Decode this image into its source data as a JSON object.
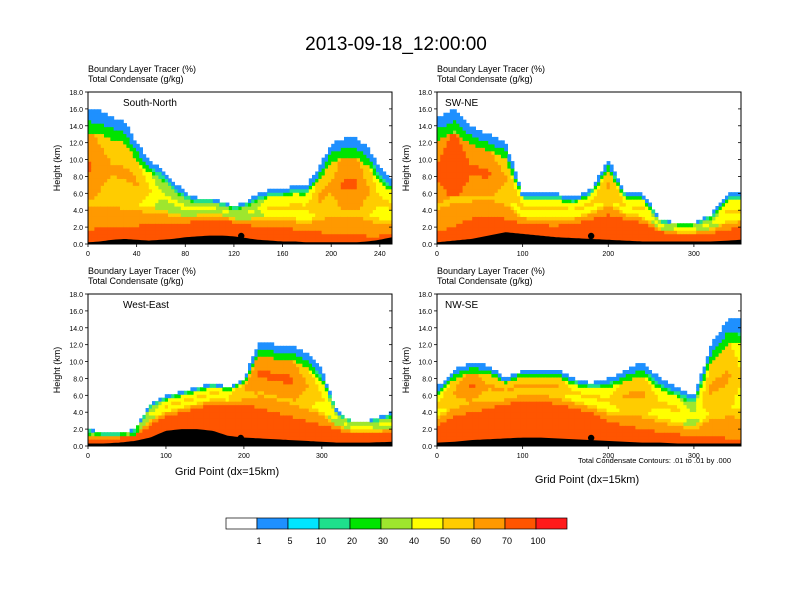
{
  "figure": {
    "title": "2013-09-18_12:00:00",
    "left_string_line1": "Boundary Layer Tracer   (%)",
    "left_string_line2": "Total Condensate   (g/kg)",
    "ylabel": "Height (km)",
    "xlabel": "Grid Point (dx=15km)",
    "contour_note": "Total Condensate Contours: .01 to .01 by .000"
  },
  "colorbar": {
    "labels": [
      "1",
      "5",
      "10",
      "20",
      "30",
      "40",
      "50",
      "60",
      "70",
      "100"
    ],
    "colors": [
      "#ffffff",
      "#1e90ff",
      "#00e5ff",
      "#1ee08c",
      "#00e400",
      "#9ee62e",
      "#ffff00",
      "#ffcc00",
      "#ff9900",
      "#ff5500",
      "#ff1a1a"
    ]
  },
  "chart_data": [
    {
      "type": "heatmap",
      "panel": "top-left",
      "label": "South-North",
      "ylim": [
        0,
        18
      ],
      "yticks": [
        0.0,
        2.0,
        4.0,
        6.0,
        8.0,
        10.0,
        12.0,
        14.0,
        16.0,
        18.0
      ],
      "xlim": [
        0,
        250
      ],
      "xticks": [
        0,
        40,
        80,
        120,
        160,
        200,
        240
      ],
      "marker_x": 126,
      "field": {
        "xs": [
          0,
          10,
          20,
          30,
          40,
          50,
          60,
          70,
          80,
          90,
          100,
          110,
          120,
          130,
          140,
          150,
          160,
          170,
          180,
          190,
          200,
          210,
          220,
          230,
          240,
          250
        ],
        "top": [
          16,
          15.8,
          15,
          14.5,
          12,
          10,
          9,
          7.5,
          6,
          5.5,
          5.5,
          5,
          4.5,
          5,
          6,
          6.5,
          6.5,
          7,
          7,
          9,
          12,
          12.5,
          12.5,
          11.5,
          9,
          7.5
        ],
        "top_pct": [
          60,
          55,
          50,
          50,
          50,
          40,
          30,
          30,
          30,
          30,
          30,
          30,
          30,
          30,
          30,
          40,
          40,
          40,
          40,
          50,
          50,
          60,
          60,
          50,
          40,
          40
        ],
        "red": [
          1.6,
          2,
          2,
          2,
          2.2,
          2.5,
          2.6,
          2.5,
          2.5,
          2.8,
          3,
          3,
          2.6,
          2.3,
          2.2,
          2,
          2.1,
          1.8,
          1.5,
          1.5,
          1.3,
          1.2,
          1.1,
          1.0,
          1.0,
          1.3
        ],
        "ground": [
          0.2,
          0.3,
          0.5,
          0.6,
          0.5,
          0.4,
          0.5,
          0.6,
          0.8,
          0.9,
          1.0,
          1.0,
          0.9,
          0.7,
          0.5,
          0.4,
          0.3,
          0.3,
          0.2,
          0.2,
          0.2,
          0.2,
          0.2,
          0.3,
          0.5,
          0.8
        ]
      }
    },
    {
      "type": "heatmap",
      "panel": "top-right",
      "label": "SW-NE",
      "ylim": [
        0,
        18
      ],
      "yticks": [
        0.0,
        2.0,
        4.0,
        6.0,
        8.0,
        10.0,
        12.0,
        14.0,
        16.0,
        18.0
      ],
      "xlim": [
        0,
        355
      ],
      "xticks": [
        0,
        100,
        200,
        300
      ],
      "marker_x": 180,
      "field": {
        "xs": [
          0,
          20,
          40,
          60,
          80,
          100,
          120,
          140,
          160,
          180,
          200,
          220,
          240,
          260,
          280,
          300,
          320,
          340,
          355
        ],
        "top": [
          15,
          16,
          14,
          13,
          12,
          6,
          6,
          6,
          5.5,
          6.5,
          10,
          6,
          6,
          3,
          2.5,
          2.5,
          3.5,
          6,
          6
        ],
        "top_pct": [
          60,
          70,
          60,
          60,
          50,
          40,
          40,
          40,
          40,
          40,
          50,
          40,
          40,
          30,
          30,
          30,
          30,
          40,
          40
        ],
        "red": [
          1.5,
          2.2,
          3,
          3.5,
          3,
          2.5,
          2.3,
          2.2,
          2.5,
          3,
          3.5,
          3,
          2.5,
          1.5,
          1.2,
          1.2,
          1.3,
          1.8,
          2
        ],
        "ground": [
          0.2,
          0.4,
          0.6,
          1.0,
          1.4,
          1.2,
          1.0,
          0.8,
          0.7,
          0.6,
          0.5,
          0.4,
          0.3,
          0.3,
          0.3,
          0.3,
          0.3,
          0.4,
          0.5
        ]
      }
    },
    {
      "type": "heatmap",
      "panel": "bottom-left",
      "label": "West-East",
      "ylim": [
        0,
        18
      ],
      "yticks": [
        0.0,
        2.0,
        4.0,
        6.0,
        8.0,
        10.0,
        12.0,
        14.0,
        16.0,
        18.0
      ],
      "xlim": [
        0,
        390
      ],
      "xticks": [
        0,
        100,
        200,
        300
      ],
      "marker_x": 196,
      "field": {
        "xs": [
          0,
          20,
          40,
          60,
          80,
          100,
          120,
          140,
          160,
          180,
          200,
          220,
          240,
          260,
          280,
          300,
          320,
          340,
          360,
          390
        ],
        "top": [
          2,
          1.5,
          1.5,
          2,
          5,
          6,
          6.5,
          7,
          7.5,
          7,
          8,
          12.5,
          12,
          12,
          11,
          9,
          4,
          3,
          3,
          4
        ],
        "top_pct": [
          20,
          20,
          20,
          20,
          30,
          40,
          40,
          40,
          40,
          40,
          50,
          60,
          60,
          60,
          50,
          40,
          30,
          30,
          30,
          30
        ],
        "red": [
          1.0,
          1.0,
          1.0,
          1.2,
          2.5,
          3.5,
          4,
          4.5,
          5,
          5,
          5,
          4.5,
          4,
          3.5,
          3,
          2.5,
          2,
          1.5,
          1.5,
          1.5
        ],
        "ground": [
          0.3,
          0.3,
          0.4,
          0.6,
          1.0,
          1.8,
          2.0,
          2.0,
          1.8,
          1.2,
          1.0,
          0.9,
          0.8,
          0.7,
          0.6,
          0.5,
          0.4,
          0.4,
          0.4,
          0.5
        ]
      }
    },
    {
      "type": "heatmap",
      "panel": "bottom-right",
      "label": "NW-SE",
      "ylim": [
        0,
        18
      ],
      "yticks": [
        0.0,
        2.0,
        4.0,
        6.0,
        8.0,
        10.0,
        12.0,
        14.0,
        16.0,
        18.0
      ],
      "xlim": [
        0,
        355
      ],
      "xticks": [
        0,
        100,
        200,
        300
      ],
      "marker_x": 180,
      "field": {
        "xs": [
          0,
          20,
          40,
          60,
          80,
          100,
          120,
          140,
          160,
          180,
          200,
          220,
          240,
          260,
          280,
          300,
          320,
          340,
          355
        ],
        "top": [
          7,
          9,
          10,
          9.5,
          8,
          9,
          9,
          9,
          8,
          7.5,
          8,
          9,
          10,
          8,
          7,
          6,
          12,
          15,
          15
        ],
        "top_pct": [
          40,
          50,
          60,
          50,
          50,
          50,
          50,
          50,
          40,
          40,
          40,
          50,
          50,
          40,
          40,
          30,
          50,
          50,
          40
        ],
        "red": [
          2.5,
          3.5,
          4,
          4.5,
          5,
          5.5,
          5.5,
          5,
          4.5,
          4,
          3,
          2.5,
          2,
          1.8,
          1.5,
          1.2,
          1.2,
          1.0,
          1.0
        ],
        "ground": [
          0.4,
          0.5,
          0.7,
          0.8,
          0.9,
          1.0,
          1.0,
          0.9,
          0.8,
          0.7,
          0.6,
          0.5,
          0.4,
          0.4,
          0.3,
          0.3,
          0.3,
          0.3,
          0.3
        ]
      }
    }
  ]
}
